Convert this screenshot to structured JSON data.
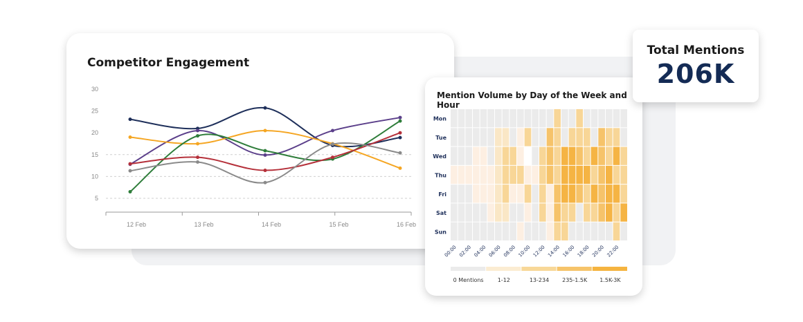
{
  "line_card": {
    "title": "Competitor Engagement"
  },
  "heatmap_card": {
    "title": "Mention Volume by Day of the Week and Hour"
  },
  "kpi": {
    "label": "Total Mentions",
    "value": "206K"
  },
  "chart_data": [
    {
      "type": "line",
      "title": "Competitor Engagement",
      "categories": [
        "12 Feb",
        "13 Feb",
        "14 Feb",
        "15 Feb",
        "16 Feb"
      ],
      "ylim": [
        0,
        30
      ],
      "yticks": [
        5,
        10,
        15,
        20,
        25,
        30
      ],
      "grid": "dashed horizontal at 5, 10, 15",
      "smooth": true,
      "series": [
        {
          "color": "#1e2f5a",
          "values": [
            23.1,
            21.0,
            25.7,
            17.1,
            18.9
          ]
        },
        {
          "color": "#5b3f8a",
          "values": [
            12.8,
            20.5,
            14.9,
            20.5,
            23.5
          ]
        },
        {
          "color": "#f5a623",
          "values": [
            19.0,
            17.5,
            20.5,
            17.5,
            11.9
          ]
        },
        {
          "color": "#2e7d3a",
          "values": [
            6.5,
            19.3,
            15.9,
            14.0,
            22.7
          ]
        },
        {
          "color": "#b5303a",
          "values": [
            12.9,
            14.4,
            11.4,
            14.4,
            20.0
          ]
        },
        {
          "color": "#8a8a8a",
          "values": [
            11.3,
            13.3,
            8.6,
            17.4,
            15.4
          ]
        }
      ]
    },
    {
      "type": "heatmap",
      "title": "Mention Volume by Day of the Week and Hour",
      "rows": [
        "Mon",
        "Tue",
        "Wed",
        "Thu",
        "Fri",
        "Sat",
        "Sun"
      ],
      "columns": [
        "00:00",
        "01:00",
        "02:00",
        "03:00",
        "04:00",
        "05:00",
        "06:00",
        "07:00",
        "08:00",
        "09:00",
        "10:00",
        "11:00",
        "12:00",
        "13:00",
        "14:00",
        "15:00",
        "16:00",
        "17:00",
        "18:00",
        "19:00",
        "20:00",
        "21:00",
        "22:00",
        "23:00"
      ],
      "column_labels_shown": [
        "00:00",
        "02:00",
        "04:00",
        "06:00",
        "08:00",
        "10:00",
        "12:00",
        "14:00",
        "16:00",
        "18:00",
        "20:00",
        "22:00"
      ],
      "level_colors": [
        "#ebebeb",
        "#fdefe2",
        "#fae7c6",
        "#f8d697",
        "#f6c36a",
        "#f5b444"
      ],
      "empty_color": "#ffffff",
      "levels": [
        [
          0,
          0,
          0,
          0,
          0,
          0,
          0,
          0,
          0,
          0,
          0,
          0,
          0,
          0,
          3,
          0,
          0,
          3,
          0,
          0,
          0,
          0,
          0,
          0
        ],
        [
          0,
          0,
          0,
          0,
          0,
          0,
          2,
          2,
          0,
          1,
          3,
          0,
          0,
          4,
          3,
          0,
          3,
          3,
          3,
          0,
          4,
          3,
          3,
          0
        ],
        [
          0,
          0,
          0,
          1,
          1,
          0,
          2,
          3,
          3,
          1,
          null,
          0,
          3,
          4,
          3,
          5,
          5,
          4,
          3,
          5,
          4,
          3,
          5,
          3
        ],
        [
          1,
          1,
          1,
          1,
          1,
          1,
          2,
          3,
          3,
          3,
          1,
          1,
          3,
          4,
          3,
          5,
          5,
          5,
          5,
          3,
          4,
          5,
          3,
          3
        ],
        [
          0,
          0,
          0,
          1,
          1,
          1,
          2,
          3,
          1,
          1,
          3,
          0,
          3,
          1,
          4,
          5,
          5,
          4,
          3,
          5,
          4,
          5,
          5,
          3
        ],
        [
          0,
          0,
          0,
          0,
          0,
          1,
          2,
          2,
          0,
          0,
          1,
          0,
          3,
          1,
          4,
          3,
          3,
          0,
          3,
          3,
          4,
          5,
          3,
          5
        ],
        [
          0,
          0,
          0,
          0,
          0,
          0,
          0,
          0,
          0,
          1,
          0,
          0,
          0,
          1,
          3,
          3,
          0,
          0,
          0,
          0,
          0,
          0,
          3,
          0
        ]
      ],
      "legend": [
        {
          "label": "0 Mentions",
          "color": "#ebebeb"
        },
        {
          "label": "1-12",
          "color": "#fbecd2"
        },
        {
          "label": "13-234",
          "color": "#f8d898"
        },
        {
          "label": "235-1.5K",
          "color": "#f6c46a"
        },
        {
          "label": "1.5K-3K",
          "color": "#f5b440"
        }
      ]
    }
  ]
}
